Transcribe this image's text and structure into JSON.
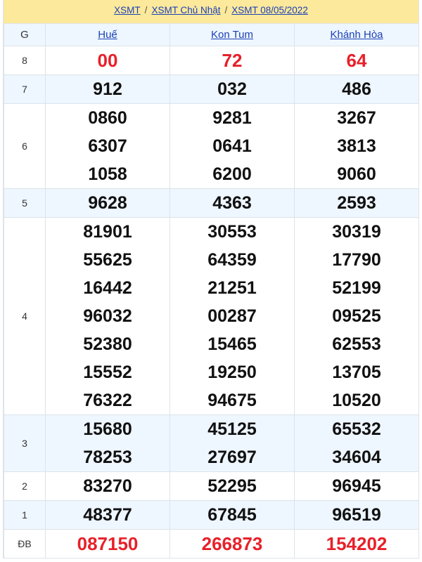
{
  "breadcrumb": [
    "XSMT",
    "XSMT Chủ Nhật",
    "XSMT 08/05/2022"
  ],
  "header": {
    "prize_col": "G",
    "provinces": [
      "Huế",
      "Kon Tum",
      "Khánh Hòa"
    ]
  },
  "colors": {
    "highlight": "#e8202a",
    "link": "#1a3fb5",
    "banner": "#fde99b",
    "alt_row": "#eef6ff"
  },
  "prizes": [
    {
      "label": "8",
      "red": true,
      "values": [
        [
          "00"
        ],
        [
          "72"
        ],
        [
          "64"
        ]
      ]
    },
    {
      "label": "7",
      "values": [
        [
          "912"
        ],
        [
          "032"
        ],
        [
          "486"
        ]
      ]
    },
    {
      "label": "6",
      "values": [
        [
          "0860",
          "6307",
          "1058"
        ],
        [
          "9281",
          "0641",
          "6200"
        ],
        [
          "3267",
          "3813",
          "9060"
        ]
      ]
    },
    {
      "label": "5",
      "values": [
        [
          "9628"
        ],
        [
          "4363"
        ],
        [
          "2593"
        ]
      ]
    },
    {
      "label": "4",
      "values": [
        [
          "81901",
          "55625",
          "16442",
          "96032",
          "52380",
          "15552",
          "76322"
        ],
        [
          "30553",
          "64359",
          "21251",
          "00287",
          "15465",
          "19250",
          "94675"
        ],
        [
          "30319",
          "17790",
          "52199",
          "09525",
          "62553",
          "13705",
          "10520"
        ]
      ]
    },
    {
      "label": "3",
      "values": [
        [
          "15680",
          "78253"
        ],
        [
          "45125",
          "27697"
        ],
        [
          "65532",
          "34604"
        ]
      ]
    },
    {
      "label": "2",
      "values": [
        [
          "83270"
        ],
        [
          "52295"
        ],
        [
          "96945"
        ]
      ]
    },
    {
      "label": "1",
      "values": [
        [
          "48377"
        ],
        [
          "67845"
        ],
        [
          "96519"
        ]
      ]
    },
    {
      "label": "ĐB",
      "red": true,
      "values": [
        [
          "087150"
        ],
        [
          "266873"
        ],
        [
          "154202"
        ]
      ]
    }
  ]
}
